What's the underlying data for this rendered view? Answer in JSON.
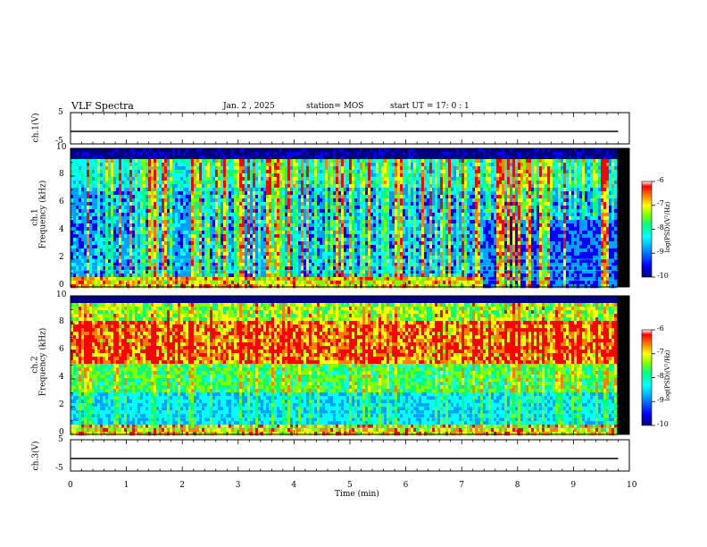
{
  "header": {
    "title": "VLF Spectra",
    "date": "Jan. 2 , 2025",
    "station": "station= MOS",
    "start": "start UT = 17: 0 : 1"
  },
  "chart_data": [
    {
      "type": "line",
      "panel": "ch1-waveform",
      "ylabel": "ch.1(V)",
      "yticks": [
        "5",
        "-5"
      ],
      "ylim": [
        -5,
        5
      ],
      "x": [
        0,
        1,
        2,
        3,
        4,
        5,
        6,
        7,
        8,
        9,
        9.8
      ],
      "values": [
        -1,
        -1,
        -1,
        -1,
        -1,
        -1,
        -1,
        -1,
        -1,
        -1,
        -1
      ]
    },
    {
      "type": "heatmap",
      "panel": "ch1-spectrogram",
      "ylabel_top": "ch.1",
      "ylabel": "Frequency (kHz)",
      "yticks": [
        "0",
        "2",
        "4",
        "6",
        "8",
        "10"
      ],
      "ylim": [
        0,
        10
      ],
      "xlim": [
        0,
        10
      ],
      "data_end_min": 9.8,
      "colorbar": {
        "label": "log(PSD)(V²/Hz)",
        "ticks": [
          "-6",
          "-7",
          "-8",
          "-9",
          "-10"
        ],
        "range": [
          -10,
          -6
        ]
      },
      "bands_khz": [
        0.5,
        1.2,
        1.5,
        2.0
      ]
    },
    {
      "type": "heatmap",
      "panel": "ch2-spectrogram",
      "ylabel_top": "ch.2",
      "ylabel": "Frequency (kHz)",
      "yticks": [
        "0",
        "2",
        "4",
        "6",
        "8",
        "10"
      ],
      "ylim": [
        0,
        10
      ],
      "xlim": [
        0,
        10
      ],
      "data_end_min": 9.8,
      "colorbar": {
        "label": "log(PSD)(V²/Hz)",
        "ticks": [
          "-6",
          "-7",
          "-8",
          "-9",
          "-10"
        ],
        "range": [
          -10,
          -6
        ]
      },
      "bands_khz": [
        0.5,
        1.2,
        1.5,
        2.0
      ]
    },
    {
      "type": "line",
      "panel": "ch3-waveform",
      "ylabel": "ch.3(V)",
      "yticks": [
        "5",
        "-5"
      ],
      "ylim": [
        -5,
        5
      ],
      "x": [
        0,
        1,
        2,
        3,
        4,
        5,
        6,
        7,
        8,
        9,
        9.8
      ],
      "values": [
        -1,
        -1,
        -1,
        -1,
        -1,
        -1,
        -1,
        -1,
        -1,
        -1,
        -1
      ]
    }
  ],
  "xaxis": {
    "label": "Time (min)",
    "ticks": [
      "0",
      "1",
      "2",
      "3",
      "4",
      "5",
      "6",
      "7",
      "8",
      "9",
      "10"
    ]
  },
  "colors": {
    "cmap": [
      "#000080",
      "#0000ff",
      "#00a0ff",
      "#00ffff",
      "#00ff80",
      "#80ff00",
      "#ffff00",
      "#ff8000",
      "#ff0000"
    ]
  }
}
